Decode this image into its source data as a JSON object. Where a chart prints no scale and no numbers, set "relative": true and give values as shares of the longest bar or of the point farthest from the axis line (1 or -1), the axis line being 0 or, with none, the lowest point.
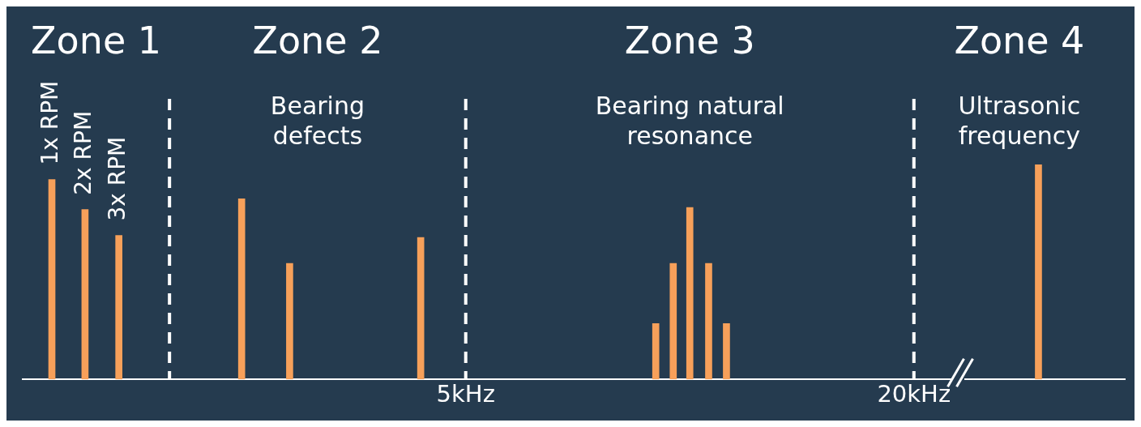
{
  "chart_data": {
    "type": "bar",
    "relative": true,
    "log": "x",
    "color": "#f7a05a",
    "x": [
      1.39,
      1.54,
      1.71,
      2.5,
      2.9,
      4.35,
      9.0,
      9.5,
      10.0,
      10.6,
      11.2,
      29.4
    ],
    "values": [
      0.93,
      0.79,
      0.67,
      0.84,
      0.54,
      0.66,
      0.26,
      0.54,
      0.8,
      0.54,
      0.26,
      1
    ],
    "xlim": [
      1.27,
      38.4
    ],
    "xticks": [
      {
        "value": 5,
        "label": "5kHz"
      },
      {
        "value": 20,
        "label": "20kHz"
      }
    ],
    "ref_lines": [
      {
        "axis": "x",
        "value": 2.0,
        "line_style": "dashed",
        "color": "#ffffff"
      },
      {
        "axis": "x",
        "value": 5,
        "line_style": "dashed",
        "color": "#ffffff"
      },
      {
        "axis": "x",
        "value": 20,
        "line_style": "dashed",
        "color": "#ffffff"
      }
    ],
    "annotations": [
      "Zone 1",
      "Zone 2",
      "Zone 3",
      "Zone 4",
      "Bearing defects",
      "Bearing natural resonance",
      "Ultrasonic frequency",
      {
        "text": "1x RPM",
        "x": 1.39,
        "y": 0.93
      },
      {
        "text": "2x RPM",
        "x": 1.54,
        "y": 0.79
      },
      {
        "text": "3x RPM",
        "x": 1.71,
        "y": 0.67
      }
    ],
    "grid": false,
    "legend": false
  }
}
